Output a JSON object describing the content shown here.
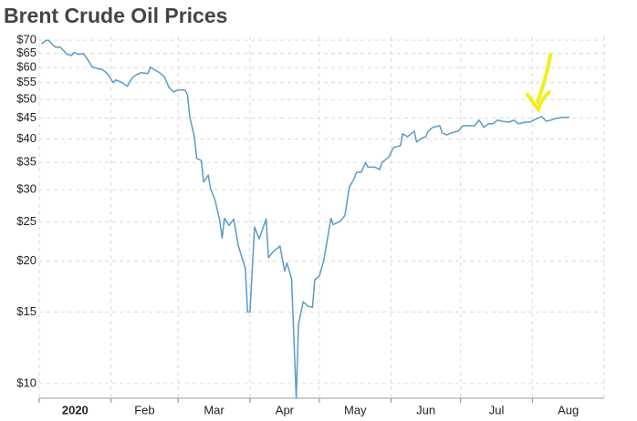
{
  "chart_data": {
    "type": "line",
    "title": "Brent Crude Oil Prices",
    "log": true,
    "grid": true,
    "x": [
      1,
      3,
      4,
      6,
      7,
      9,
      11,
      12,
      14,
      15,
      17,
      19,
      20,
      22,
      23,
      26,
      27,
      29,
      30,
      32,
      33,
      36,
      38,
      40,
      42,
      44,
      47,
      48,
      50,
      52,
      54,
      56,
      58,
      60,
      63,
      64,
      65,
      67,
      68,
      70,
      71,
      73,
      74,
      76,
      78,
      79,
      80,
      82,
      84,
      86,
      89,
      90,
      91,
      93,
      95,
      98,
      99,
      101,
      104,
      106,
      107,
      109,
      111,
      112,
      114,
      116,
      118,
      119,
      121,
      123,
      126,
      127,
      130,
      132,
      134,
      136,
      137,
      139,
      141,
      142,
      144,
      145,
      147,
      148,
      151,
      153,
      156,
      157,
      159,
      160,
      162,
      163,
      165,
      167,
      168,
      170,
      173,
      174,
      176,
      178,
      181,
      183,
      185,
      188,
      190,
      192,
      194,
      196,
      198,
      200,
      203,
      205,
      207,
      210,
      212,
      215,
      217,
      219,
      221,
      223,
      226,
      229
    ],
    "series": [
      {
        "name": "Brent",
        "color": "#5a9bc6",
        "values": [
          68.6,
          69.9,
          70.0,
          68.0,
          67.3,
          67.3,
          65.6,
          64.6,
          64.2,
          65.3,
          64.6,
          64.9,
          63.9,
          61.3,
          60.1,
          59.4,
          59.4,
          58.2,
          57.3,
          55.0,
          55.9,
          55.0,
          53.9,
          56.4,
          57.6,
          58.2,
          57.9,
          60.1,
          59.1,
          58.2,
          57.0,
          53.6,
          52.2,
          52.8,
          52.8,
          51.4,
          45.4,
          40.5,
          35.8,
          35.4,
          31.3,
          32.6,
          30.2,
          28.2,
          25.1,
          22.8,
          25.5,
          24.5,
          25.4,
          21.8,
          19.2,
          15.0,
          15.0,
          24.3,
          22.7,
          25.4,
          20.4,
          21.1,
          21.8,
          18.9,
          19.8,
          18.1,
          9.2,
          14.0,
          15.9,
          15.5,
          15.4,
          18.0,
          18.4,
          20.2,
          25.5,
          24.6,
          25.1,
          25.9,
          30.5,
          31.9,
          33.1,
          33.1,
          35.0,
          34.1,
          34.1,
          34.1,
          33.6,
          35.0,
          36.1,
          38.1,
          38.5,
          41.2,
          40.5,
          40.9,
          41.8,
          39.3,
          40.1,
          40.5,
          41.8,
          42.7,
          43.1,
          41.4,
          40.9,
          41.4,
          41.8,
          43.1,
          43.1,
          43.1,
          44.5,
          42.7,
          43.6,
          43.6,
          44.5,
          44.2,
          44.0,
          44.5,
          43.6,
          44.0,
          44.0,
          44.9,
          45.4,
          44.2,
          44.5,
          44.9,
          45.2,
          45.2
        ]
      }
    ],
    "xlim": [
      0,
      244
    ],
    "xticks": [
      {
        "value": 0,
        "label": "2020"
      },
      {
        "value": 31,
        "label": "Feb"
      },
      {
        "value": 60,
        "label": "Mar"
      },
      {
        "value": 91,
        "label": "Apr"
      },
      {
        "value": 121,
        "label": "May"
      },
      {
        "value": 152,
        "label": "Jun"
      },
      {
        "value": 182,
        "label": "Jul"
      },
      {
        "value": 213,
        "label": "Aug"
      }
    ],
    "ylim": [
      9.2,
      71.5
    ],
    "yticks": [
      {
        "value": 10,
        "label": "$10"
      },
      {
        "value": 15,
        "label": "$15"
      },
      {
        "value": 20,
        "label": "$20"
      },
      {
        "value": 25,
        "label": "$25"
      },
      {
        "value": 30,
        "label": "$30"
      },
      {
        "value": 35,
        "label": "$35"
      },
      {
        "value": 40,
        "label": "$40"
      },
      {
        "value": 45,
        "label": "$45"
      },
      {
        "value": 50,
        "label": "$50"
      },
      {
        "value": 55,
        "label": "$55"
      },
      {
        "value": 60,
        "label": "$60"
      },
      {
        "value": 65,
        "label": "$65"
      },
      {
        "value": 70,
        "label": "$70"
      }
    ]
  }
}
